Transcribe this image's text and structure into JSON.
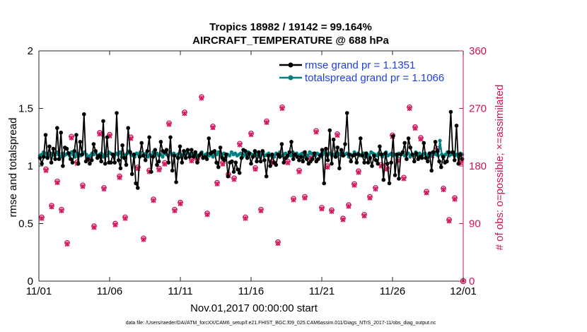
{
  "chart_data": {
    "type": "line",
    "title_line1": "Tropics 18982 / 19142 = 99.164%",
    "title_line2": "AIRCRAFT_TEMPERATURE @ 688 hPa",
    "xlabel": "Nov.01,2017 00:00:00 start",
    "ylabel": "rmse and totalspread",
    "ylabel_right": "# of obs: o=possible; ×=assimilated",
    "footer": "data file: /Users/raeder/DAI/ATM_forcXX/CAM6_setup/f.e21.FHIST_BGC.f09_025.CAM6assim.011/Diags_NTrS_2017-11/obs_diag_output.nc",
    "xlim": [
      0,
      30
    ],
    "ylim": [
      0,
      2
    ],
    "ylim_right": [
      0,
      360
    ],
    "x_ticks": [
      0,
      5,
      10,
      15,
      20,
      25,
      30
    ],
    "x_tick_labels": [
      "11/01",
      "11/06",
      "11/11",
      "11/16",
      "11/21",
      "11/26",
      "12/01"
    ],
    "y_ticks": [
      0,
      0.5,
      1,
      1.5,
      2
    ],
    "y_tick_labels": [
      "0",
      "0.5",
      "1",
      "1.5",
      "2"
    ],
    "y_ticks_right": [
      0,
      90,
      180,
      270,
      360
    ],
    "y_tick_labels_right": [
      "0",
      "90",
      "180",
      "270",
      "360"
    ],
    "colors": {
      "rmse": "#000000",
      "totalspread": "#008080",
      "obs": "#d0105a",
      "legend_text": "#1f3fe0"
    },
    "series": [
      {
        "name": "rmse",
        "legend": "rmse grand pr = 1.1351",
        "values": [
          1.07,
          1.02,
          1.08,
          1.27,
          1.07,
          1.17,
          1.03,
          1.15,
          1.06,
          1.33,
          1.06,
          1.29,
          1.0,
          1.16,
          1.15,
          1.11,
          1.06,
          1.03,
          1.13,
          1.27,
          1.02,
          1.21,
          1.1,
          1.45,
          1.04,
          1.06,
          1.02,
          1.05,
          1.19,
          1.13,
          1.07,
          1.09,
          1.04,
          1.39,
          1.02,
          1.25,
          1.03,
          1.03,
          1.1,
          1.03,
          1.46,
          1.05,
          0.98,
          1.18,
          1.07,
          1.01,
          1.33,
          1.12,
          0.93,
          1.1,
          0.85,
          0.81,
          1.08,
          1.2,
          1.09,
          1.05,
          1.13,
          1.25,
          0.95,
          1.08,
          1.14,
          1.01,
          1.04,
          1.21,
          1.13,
          1.12,
          1.14,
          1.03,
          1.25,
          0.96,
          1.09,
          0.86,
          1.07,
          1.17,
          1.03,
          1.13,
          1.07,
          1.14,
          1.08,
          1.14,
          1.08,
          1.12,
          1.03,
          1.09,
          1.11,
          1.07,
          1.08,
          1.06,
          1.24,
          1.11,
          1.12,
          1.13,
          1.03,
          0.99,
          1.16,
          1.07,
          1.05,
          1.1,
          0.91,
          1.03,
          1.04,
          0.95,
          1.03,
          0.97,
          0.94,
          1.07,
          1.14,
          1.13,
          1.07,
          1.11,
          1.02,
          1.08,
          1.13,
          1.04,
          1.12,
          1.04,
          1.13,
          1.05,
          0.91,
          1.09,
          1.0,
          1.1,
          1.03,
          1.01,
          1.1,
          1.08,
          1.19,
          1.03,
          1.07,
          1.09,
          1.12,
          1.21,
          1.06,
          1.1,
          1.08,
          1.05,
          1.08,
          1.04,
          1.12,
          1.06,
          1.02,
          1.04,
          1.06,
          1.11,
          1.04,
          1.06,
          1.09,
          1.14,
          0.85,
          1.15,
          1.05,
          1.31,
          1.02,
          1.23,
          1.08,
          1.16,
          0.98,
          1.14,
          1.09,
          1.19,
          1.46,
          1.1,
          1.04,
          1.09,
          1.1,
          1.03,
          1.1,
          1.24,
          1.09,
          1.03,
          1.11,
          1.03,
          1.07,
          1.0,
          1.09,
          1.05,
          1.02,
          1.17,
          1.1,
          0.88,
          1.11,
          1.02,
          0.85,
          1.03,
          1.26,
          0.92,
          1.1,
          0.89,
          1.1,
          1.12,
          1.2,
          1.06,
          1.24,
          1.16,
          1.1,
          1.04,
          1.11,
          1.06,
          1.08,
          1.07,
          1.2,
          1.07,
          1.04,
          1.11,
          0.96,
          1.12,
          1.21,
          1.13,
          1.04,
          0.99,
          1.08,
          1.03,
          1.04,
          1.12,
          1.47,
          1.12,
          1.05,
          1.35,
          1.02,
          1.1,
          1.06
        ]
      },
      {
        "name": "totalspread",
        "legend": "totalspread grand pr = 1.1066",
        "values": [
          1.09,
          1.1,
          1.12,
          1.11,
          1.08,
          1.09,
          1.11,
          1.1,
          1.09,
          1.12,
          1.1,
          1.08,
          1.11,
          1.09,
          1.1,
          1.11,
          1.09,
          1.12,
          1.1,
          1.08,
          1.11,
          1.1,
          1.09,
          1.11,
          1.12,
          1.1,
          1.08,
          1.09,
          1.11,
          1.1,
          1.12,
          1.09,
          1.1,
          1.11,
          1.08,
          1.1,
          1.09,
          1.12,
          1.11,
          1.1,
          1.09,
          1.11,
          1.1,
          1.12,
          1.08,
          1.1,
          1.09,
          1.11,
          1.13,
          1.1,
          1.09,
          1.08,
          1.11,
          1.1,
          1.12,
          1.09,
          1.1,
          1.11,
          1.08,
          1.1,
          1.09,
          1.12,
          1.1,
          1.11,
          1.09,
          1.1,
          1.08,
          1.11,
          1.1,
          1.09,
          1.12,
          1.1,
          1.11,
          1.09,
          1.1,
          1.11,
          1.08,
          1.1,
          1.09,
          1.12,
          1.11,
          1.1,
          1.09,
          1.11,
          1.1,
          1.08,
          1.1,
          1.12,
          1.09,
          1.1,
          1.11,
          1.09,
          1.1,
          1.08,
          1.11,
          1.1,
          1.12,
          1.09,
          1.1,
          1.11,
          1.08,
          1.1,
          1.09,
          1.12,
          1.1,
          1.11,
          1.09,
          1.1,
          1.11,
          1.08,
          1.1,
          1.09,
          1.12,
          1.11,
          1.1,
          1.09,
          1.11,
          1.1,
          1.08,
          1.1,
          1.12,
          1.09,
          1.1,
          1.11,
          1.09,
          1.1,
          1.08,
          1.11,
          1.1,
          1.12,
          1.09,
          1.1,
          1.11,
          1.08,
          1.1,
          1.09,
          1.12,
          1.1,
          1.11,
          1.09,
          1.1,
          1.11,
          1.08,
          1.1,
          1.09,
          1.12,
          1.11,
          1.1,
          1.09,
          1.11,
          1.1,
          1.08,
          1.1,
          1.12,
          1.09,
          1.1,
          1.11,
          1.09,
          1.1,
          1.08,
          1.11,
          1.1,
          1.12,
          1.09,
          1.1,
          1.11,
          1.08,
          1.1,
          1.09,
          1.12,
          1.1,
          1.11,
          1.09,
          1.1,
          1.11,
          1.08,
          1.1,
          1.09,
          1.12,
          1.11,
          1.1,
          1.09,
          1.11,
          1.1,
          1.08,
          1.1,
          1.12,
          1.09,
          1.1,
          1.11,
          1.09,
          1.1,
          1.08,
          1.11,
          1.1,
          1.12,
          1.09,
          1.1,
          1.11,
          1.08,
          1.1,
          1.09,
          1.12,
          1.1,
          1.11,
          1.09,
          1.1,
          1.11,
          1.08,
          1.1,
          1.09,
          1.12,
          1.11,
          1.1,
          1.09,
          1.22,
          1.1,
          1.08,
          1.1,
          1.12,
          1.09,
          1.1,
          1.11,
          1.09,
          1.1,
          1.08,
          1.11,
          1.1
        ]
      }
    ],
    "obs_x": [
      0.2,
      0.5,
      0.9,
      1.3,
      1.6,
      2.0,
      2.3,
      2.7,
      3.1,
      3.6,
      3.9,
      4.3,
      4.6,
      5.0,
      5.4,
      5.7,
      6.1,
      6.5,
      7.0,
      7.4,
      7.8,
      8.1,
      8.5,
      8.9,
      9.2,
      9.6,
      10.0,
      10.3,
      10.8,
      11.2,
      11.5,
      11.9,
      12.3,
      12.6,
      13.0,
      13.4,
      13.8,
      14.2,
      14.6,
      15.0,
      15.3,
      15.7,
      16.1,
      16.5,
      16.9,
      17.2,
      17.6,
      18.0,
      18.4,
      18.8,
      19.2,
      19.6,
      20.0,
      20.4,
      20.7,
      21.1,
      21.5,
      21.9,
      22.3,
      22.6,
      23.0,
      23.4,
      23.8,
      24.2,
      24.6,
      25.0,
      25.4,
      25.8,
      26.2,
      26.6,
      27.0,
      27.4,
      27.8,
      28.2,
      28.6,
      29.0,
      29.4,
      29.8
    ],
    "obs_possible": [
      100,
      175,
      118,
      156,
      112,
      60,
      226,
      186,
      150,
      193,
      86,
      232,
      146,
      229,
      90,
      164,
      100,
      225,
      178,
      67,
      173,
      128,
      176,
      185,
      247,
      112,
      123,
      264,
      190,
      191,
      288,
      106,
      242,
      154,
      185,
      167,
      161,
      215,
      100,
      231,
      177,
      112,
      250,
      187,
      61,
      272,
      187,
      129,
      173,
      132,
      195,
      235,
      115,
      180,
      111,
      230,
      98,
      119,
      152,
      172,
      104,
      132,
      146,
      182,
      177,
      228,
      190,
      162,
      272,
      241,
      224,
      140,
      198,
      207,
      145,
      96,
      130,
      187
    ],
    "obs_assim": [
      98,
      173,
      116,
      154,
      110,
      58,
      224,
      184,
      148,
      191,
      84,
      230,
      144,
      227,
      88,
      162,
      98,
      223,
      176,
      65,
      171,
      126,
      174,
      183,
      245,
      110,
      121,
      262,
      188,
      189,
      286,
      104,
      240,
      152,
      183,
      165,
      159,
      213,
      98,
      229,
      175,
      110,
      248,
      185,
      59,
      270,
      185,
      127,
      171,
      130,
      193,
      233,
      113,
      178,
      109,
      228,
      96,
      117,
      150,
      170,
      102,
      130,
      144,
      180,
      175,
      226,
      188,
      160,
      270,
      239,
      222,
      138,
      196,
      205,
      143,
      94,
      128,
      185
    ],
    "obs_end": {
      "x": 30,
      "possible": 0,
      "assimilated": 0
    }
  }
}
